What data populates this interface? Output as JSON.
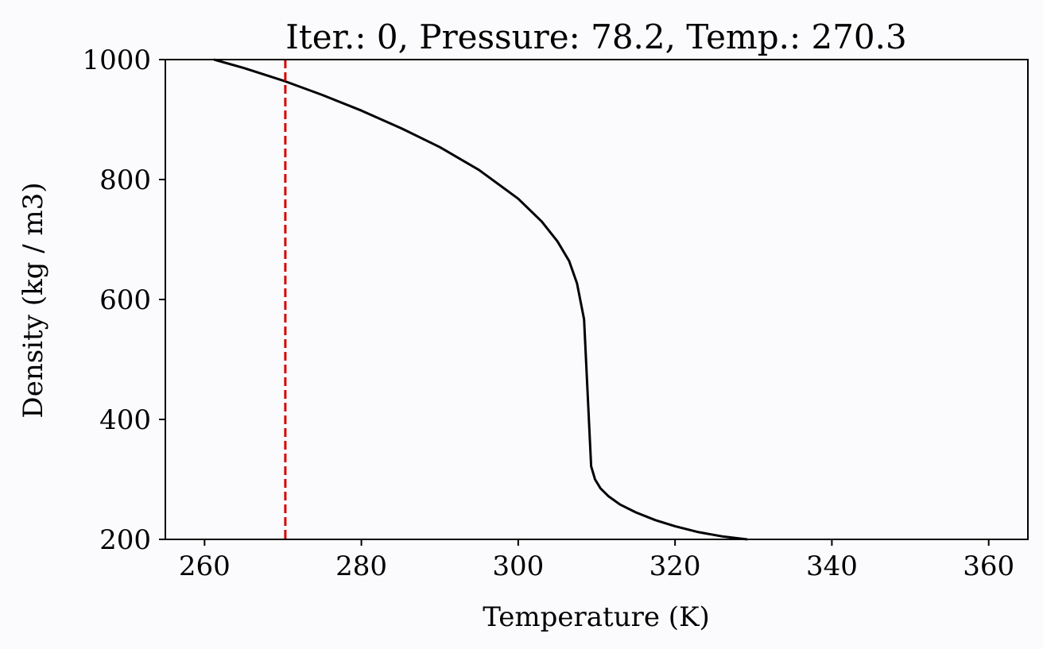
{
  "chart_data": {
    "type": "line",
    "title": "Iter.: 0, Pressure: 78.2, Temp.: 270.3",
    "xlabel": "Temperature (K)",
    "ylabel": "Density (kg / m3)",
    "xlim": [
      255,
      365
    ],
    "ylim": [
      200,
      1000
    ],
    "x_ticks": [
      260,
      280,
      300,
      320,
      340,
      360
    ],
    "y_ticks": [
      200,
      400,
      600,
      800,
      1000
    ],
    "grid": false,
    "series": [
      {
        "color": "#000000",
        "style": "solid",
        "x": [
          261.2,
          265,
          270,
          275,
          280,
          285,
          290,
          295,
          300,
          303,
          305,
          306.5,
          307.5,
          308.4,
          309.3,
          309.8,
          310.5,
          311.5,
          313,
          315,
          317.5,
          320,
          323,
          326,
          329.2
        ],
        "y": [
          1000,
          986,
          965,
          941,
          915,
          886,
          854,
          816,
          768,
          730,
          697,
          664,
          627,
          567,
          322,
          300,
          285,
          272,
          258,
          245,
          232,
          222,
          212,
          205,
          200
        ]
      }
    ],
    "vlines": [
      {
        "x": 270.3,
        "color": "#d40000",
        "style": "dashed"
      }
    ],
    "background": "#fbfbfd"
  }
}
